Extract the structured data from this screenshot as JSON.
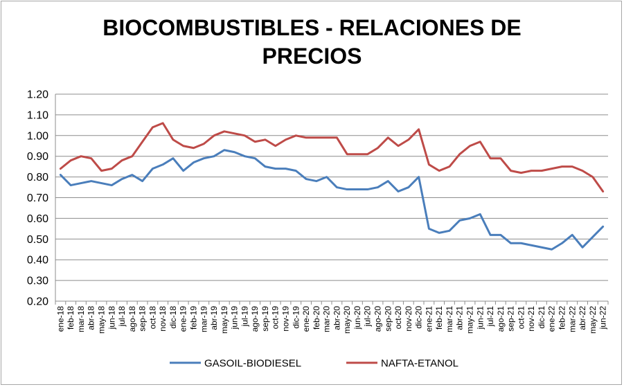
{
  "chart_data": {
    "type": "line",
    "title_line1": "BIOCOMBUSTIBLES - RELACIONES DE",
    "title_line2": "PRECIOS",
    "ylim": [
      0.2,
      1.2
    ],
    "y_ticks": [
      "0.20",
      "0.30",
      "0.40",
      "0.50",
      "0.60",
      "0.70",
      "0.80",
      "0.90",
      "1.00",
      "1.10",
      "1.20"
    ],
    "grid": "horizontal",
    "legend_position": "bottom",
    "categories": [
      "ene-18",
      "feb-18",
      "mar-18",
      "abr-18",
      "may-18",
      "jun-18",
      "jul-18",
      "ago-18",
      "sep-18",
      "oct-18",
      "nov-18",
      "dic-18",
      "ene-19",
      "feb-19",
      "mar-19",
      "abr-19",
      "may-19",
      "jun-19",
      "jul-19",
      "ago-19",
      "sep-19",
      "oct-19",
      "nov-19",
      "dic-19",
      "ene-20",
      "feb-20",
      "mar-20",
      "abr-20",
      "may-20",
      "jun-20",
      "jul-20",
      "ago-20",
      "sep-20",
      "oct-20",
      "nov-20",
      "dic-20",
      "ene-21",
      "feb-21",
      "mar-21",
      "abr-21",
      "may-21",
      "jun-21",
      "jul-21",
      "ago-21",
      "sep-21",
      "oct-21",
      "nov-21",
      "dic-21",
      "ene-22",
      "feb-22",
      "mar-22",
      "abr-22",
      "may-22",
      "jun-22"
    ],
    "series": [
      {
        "name": "GASOIL-BIODIESEL",
        "color": "#4a7ebb",
        "values": [
          0.81,
          0.76,
          0.77,
          0.78,
          0.77,
          0.76,
          0.79,
          0.81,
          0.78,
          0.84,
          0.86,
          0.89,
          0.83,
          0.87,
          0.89,
          0.9,
          0.93,
          0.92,
          0.9,
          0.89,
          0.85,
          0.84,
          0.84,
          0.83,
          0.79,
          0.78,
          0.8,
          0.75,
          0.74,
          0.74,
          0.74,
          0.75,
          0.78,
          0.73,
          0.75,
          0.8,
          0.55,
          0.53,
          0.54,
          0.59,
          0.6,
          0.62,
          0.52,
          0.52,
          0.48,
          0.48,
          0.47,
          0.46,
          0.45,
          0.48,
          0.52,
          0.46,
          0.51,
          0.56
        ]
      },
      {
        "name": "NAFTA-ETANOL",
        "color": "#be4b48",
        "values": [
          0.84,
          0.88,
          0.9,
          0.89,
          0.83,
          0.84,
          0.88,
          0.9,
          0.97,
          1.04,
          1.06,
          0.98,
          0.95,
          0.94,
          0.96,
          1.0,
          1.02,
          1.01,
          1.0,
          0.97,
          0.98,
          0.95,
          0.98,
          1.0,
          0.99,
          0.99,
          0.99,
          0.99,
          0.91,
          0.91,
          0.91,
          0.94,
          0.99,
          0.95,
          0.98,
          1.03,
          0.86,
          0.83,
          0.85,
          0.91,
          0.95,
          0.97,
          0.89,
          0.89,
          0.83,
          0.82,
          0.83,
          0.83,
          0.84,
          0.85,
          0.85,
          0.83,
          0.8,
          0.73
        ]
      }
    ]
  }
}
